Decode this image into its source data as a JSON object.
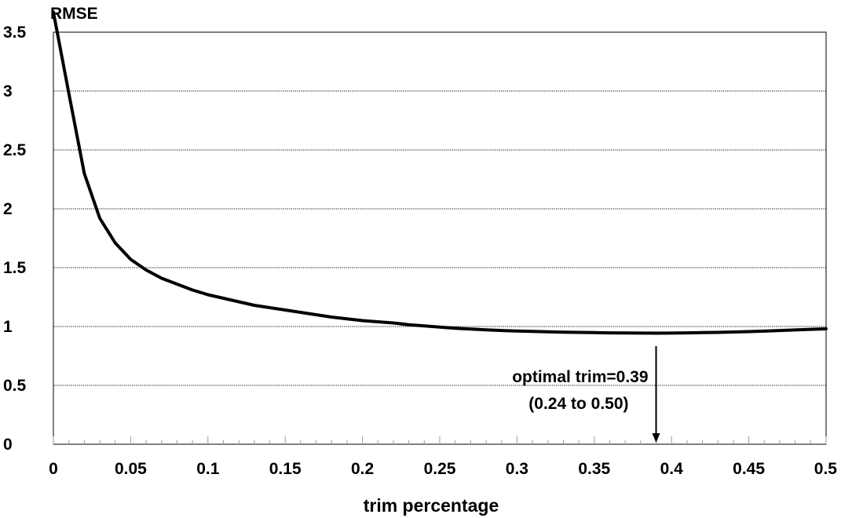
{
  "chart_data": {
    "type": "line",
    "ylabel": "RMSE",
    "xlabel": "trim percentage",
    "xlim": [
      0,
      0.5
    ],
    "ylim": [
      0,
      3.5
    ],
    "x_ticks": [
      "0",
      "0.05",
      "0.1",
      "0.15",
      "0.2",
      "0.25",
      "0.3",
      "0.35",
      "0.4",
      "0.45",
      "0.5"
    ],
    "y_ticks": [
      "0",
      "0.5",
      "1",
      "1.5",
      "2",
      "2.5",
      "3",
      "3.5"
    ],
    "grid": "horizontal",
    "series": [
      {
        "x": [
          0,
          0.01,
          0.02,
          0.03,
          0.04,
          0.05,
          0.06,
          0.07,
          0.08,
          0.09,
          0.1,
          0.11,
          0.12,
          0.13,
          0.14,
          0.15,
          0.16,
          0.17,
          0.18,
          0.19,
          0.2,
          0.21,
          0.22,
          0.23,
          0.24,
          0.25,
          0.26,
          0.27,
          0.28,
          0.29,
          0.3,
          0.31,
          0.32,
          0.33,
          0.34,
          0.35,
          0.36,
          0.37,
          0.38,
          0.39,
          0.4,
          0.41,
          0.42,
          0.43,
          0.44,
          0.45,
          0.46,
          0.47,
          0.48,
          0.49,
          0.5
        ],
        "y": [
          3.67,
          2.98,
          2.3,
          1.92,
          1.71,
          1.57,
          1.48,
          1.41,
          1.36,
          1.31,
          1.27,
          1.24,
          1.21,
          1.18,
          1.16,
          1.14,
          1.12,
          1.1,
          1.08,
          1.065,
          1.05,
          1.04,
          1.03,
          1.015,
          1.005,
          0.995,
          0.985,
          0.978,
          0.972,
          0.966,
          0.962,
          0.958,
          0.955,
          0.952,
          0.95,
          0.948,
          0.946,
          0.945,
          0.944,
          0.943,
          0.944,
          0.946,
          0.948,
          0.95,
          0.953,
          0.957,
          0.961,
          0.966,
          0.971,
          0.976,
          0.98
        ]
      }
    ],
    "annotation": {
      "line1": "optimal trim=0.39",
      "line2": "(0.24 to 0.50)",
      "x": 0.39,
      "y_from": 0.9,
      "y_to": 0
    }
  }
}
